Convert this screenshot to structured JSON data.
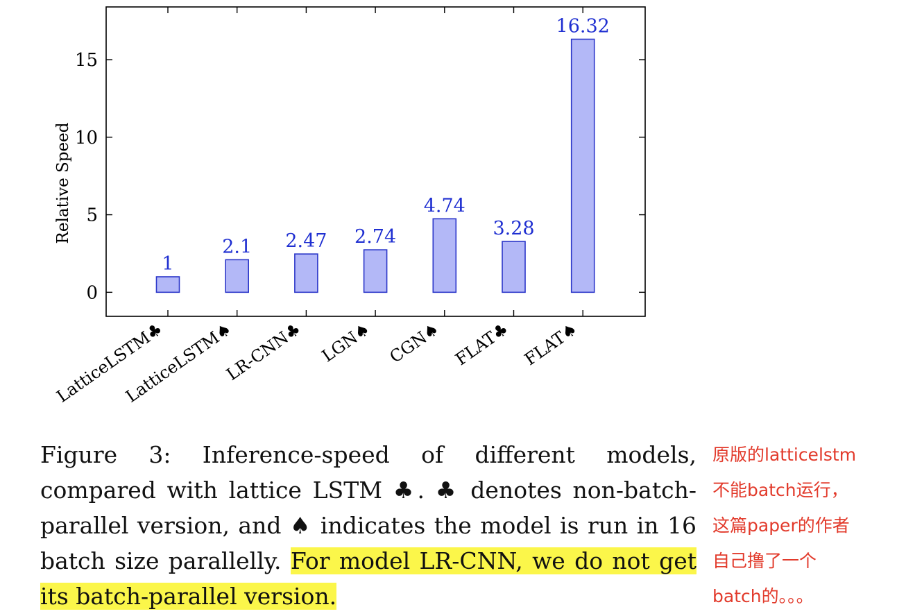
{
  "chart_data": {
    "type": "bar",
    "ylabel": "Relative Speed",
    "ylim": [
      -1.55,
      18.4
    ],
    "yticks": [
      0,
      5,
      10,
      15
    ],
    "categories": [
      "LatticeLSTM♣",
      "LatticeLSTM♠",
      "LR-CNN♣",
      "LGN♠",
      "CGN♠",
      "FLAT♣",
      "FLAT♠"
    ],
    "values": [
      1,
      2.1,
      2.47,
      2.74,
      4.74,
      3.28,
      16.32
    ],
    "value_labels": [
      "1",
      "2.1",
      "2.47",
      "2.74",
      "4.74",
      "3.28",
      "16.32"
    ],
    "bar_fill": "#b3b8f7",
    "bar_stroke": "#2b36c9",
    "label_color": "#1f2fd1",
    "grid": false
  },
  "caption": {
    "text": "Figure 3: Inference-speed of different models, compared with lattice LSTM ♣. ♣ denotes non-batch-parallel version, and ♠ indicates the model is run in 16 batch size parallelly. ",
    "highlighted": "For model LR-CNN, we do not get its batch-parallel version.",
    "highlight_color": "#fbf64a"
  },
  "annotation": {
    "lines": [
      "原版的latticelstm",
      "不能batch运行，",
      "这篇paper的作者",
      "自己撸了一个",
      "batch的。。。"
    ],
    "color": "#e23a2b"
  }
}
